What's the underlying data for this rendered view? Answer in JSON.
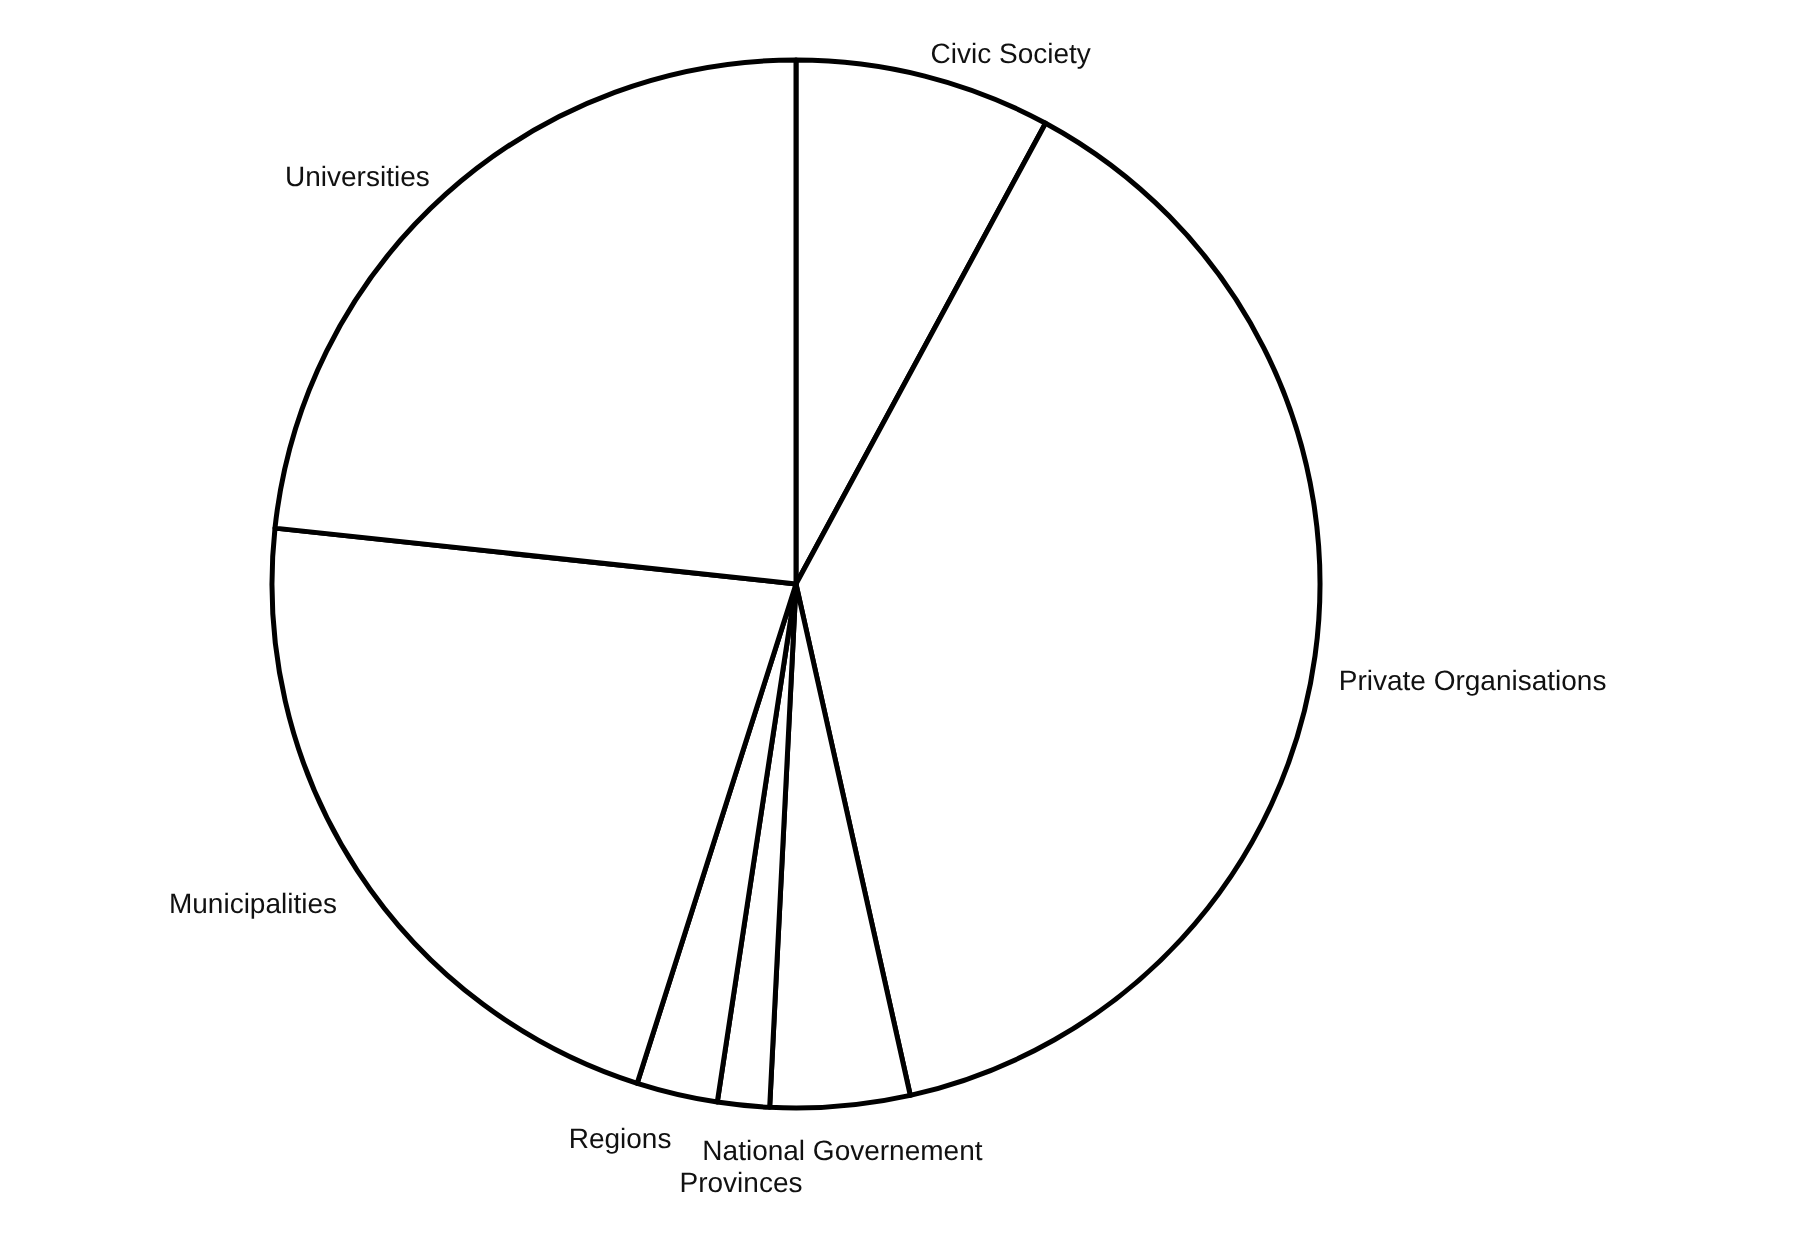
{
  "chart_data": {
    "type": "pie",
    "categories": [
      "Civic Society",
      "Private Organisations",
      "National Governement",
      "Provinces",
      "Regions",
      "Municipalities",
      "Universities"
    ],
    "values": [
      7.9,
      38.6,
      4.3,
      1.6,
      2.5,
      21.8,
      23.3
    ],
    "colors": [
      "#ffffff",
      "#ffffff",
      "#ffffff",
      "#ffffff",
      "#ffffff",
      "#ffffff",
      "#ffffff"
    ]
  }
}
